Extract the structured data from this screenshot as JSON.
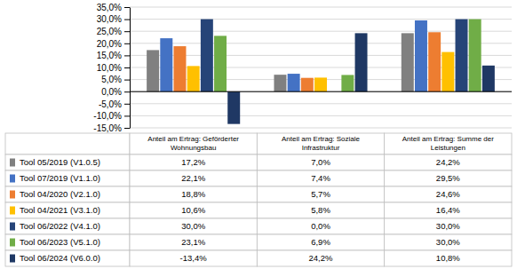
{
  "chart_data": {
    "type": "bar",
    "categories": [
      "Anteil am Ertrag: Geförderter\nWohnungsbau",
      "Anteil am Ertrag: Soziale\nInfrastruktur",
      "Anteil am Ertrag: Summe der\nLeistungen"
    ],
    "series": [
      {
        "name": "Tool 05/2019 (V1.0.5)",
        "color": "#808080",
        "values": [
          17.2,
          7.0,
          24.2
        ],
        "value_labels": [
          "17,2%",
          "7,0%",
          "24,2%"
        ]
      },
      {
        "name": "Tool 07/2019 (V1.1.0)",
        "color": "#4472C4",
        "values": [
          22.1,
          7.4,
          29.5
        ],
        "value_labels": [
          "22,1%",
          "7,4%",
          "29,5%"
        ]
      },
      {
        "name": "Tool 04/2020 (V2.1.0)",
        "color": "#ED7D31",
        "values": [
          18.8,
          5.7,
          24.6
        ],
        "value_labels": [
          "18,8%",
          "5,7%",
          "24,6%"
        ]
      },
      {
        "name": "Tool 04/2021 (V3.1.0)",
        "color": "#FFC000",
        "values": [
          10.6,
          5.8,
          16.4
        ],
        "value_labels": [
          "10,6%",
          "5,8%",
          "16,4%"
        ]
      },
      {
        "name": "Tool 06/2022 (V4.1.0)",
        "color": "#264478",
        "values": [
          30.0,
          0.0,
          30.0
        ],
        "value_labels": [
          "30,0%",
          "0,0%",
          "30,0%"
        ]
      },
      {
        "name": "Tool 06/2023 (V5.1.0)",
        "color": "#70AD47",
        "values": [
          23.1,
          6.9,
          30.0
        ],
        "value_labels": [
          "23,1%",
          "6,9%",
          "30,0%"
        ]
      },
      {
        "name": "Tool 06/2024 (V6.0.0)",
        "color": "#1F3864",
        "values": [
          -13.4,
          24.2,
          10.8
        ],
        "value_labels": [
          "-13,4%",
          "24,2%",
          "10,8%"
        ]
      }
    ],
    "ylim": [
      -15,
      35
    ],
    "yticks": [
      {
        "value": -15,
        "label": "-15,0%"
      },
      {
        "value": -10,
        "label": "-10,0%"
      },
      {
        "value": -5,
        "label": "-5,0%"
      },
      {
        "value": 0,
        "label": "0,0%"
      },
      {
        "value": 5,
        "label": "5,0%"
      },
      {
        "value": 10,
        "label": "10,0%"
      },
      {
        "value": 15,
        "label": "15,0%"
      },
      {
        "value": 20,
        "label": "20,0%"
      },
      {
        "value": 25,
        "label": "25,0%"
      },
      {
        "value": 30,
        "label": "30,0%"
      },
      {
        "value": 35,
        "label": "35,0%"
      }
    ],
    "grid": true
  }
}
